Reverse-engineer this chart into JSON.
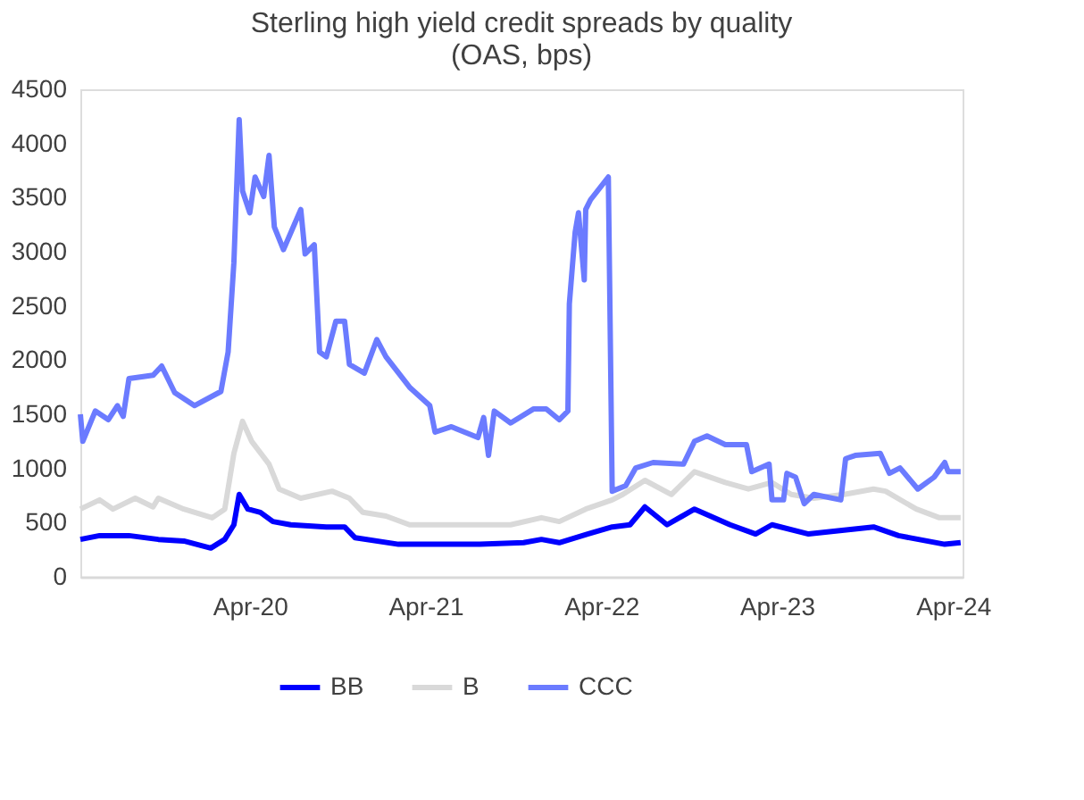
{
  "chart_data": {
    "type": "line",
    "title": "Sterling high yield credit spreads by quality (OAS, bps)",
    "xlim": [
      "2019-04-15",
      "2024-04-21"
    ],
    "xticks": [
      {
        "value": "2020-04-01",
        "label": "Apr-20"
      },
      {
        "value": "2021-04-01",
        "label": "Apr-21"
      },
      {
        "value": "2022-04-01",
        "label": "Apr-22"
      },
      {
        "value": "2023-04-01",
        "label": "Apr-23"
      },
      {
        "value": "2024-04-01",
        "label": "Apr-24"
      }
    ],
    "ylim": [
      0,
      4500
    ],
    "yticks": [
      0,
      500,
      1000,
      1500,
      2000,
      2500,
      3000,
      3500,
      4000,
      4500
    ],
    "grid": false,
    "legend": "bottom",
    "marker": "none",
    "line_style": "solid",
    "series": [
      {
        "name": "BB",
        "color": "#0000ff",
        "x": [
          "2019-04-15",
          "2019-05-25",
          "2019-07-25",
          "2019-09-24",
          "2019-11-16",
          "2020-01-11",
          "2020-02-09",
          "2020-02-28",
          "2020-03-10",
          "2020-03-28",
          "2020-04-23",
          "2020-05-19",
          "2020-06-25",
          "2020-09-07",
          "2020-10-15",
          "2020-11-06",
          "2021-02-04",
          "2021-07-23",
          "2021-10-22",
          "2021-11-28",
          "2022-01-04",
          "2022-03-04",
          "2022-04-24",
          "2022-05-31",
          "2022-07-01",
          "2022-08-16",
          "2022-10-12",
          "2022-12-25",
          "2023-02-16",
          "2023-03-22",
          "2023-06-06",
          "2023-08-19",
          "2023-10-19",
          "2023-12-10",
          "2024-03-15",
          "2024-04-17"
        ],
        "values": [
          345,
          380,
          380,
          345,
          330,
          265,
          345,
          480,
          760,
          625,
          595,
          510,
          480,
          460,
          460,
          360,
          300,
          300,
          315,
          345,
          315,
          395,
          460,
          480,
          645,
          480,
          625,
          480,
          395,
          480,
          395,
          430,
          460,
          380,
          300,
          315
        ]
      },
      {
        "name": "B",
        "color": "#d9d9d9",
        "x": [
          "2019-04-15",
          "2019-05-25",
          "2019-06-22",
          "2019-08-07",
          "2019-09-13",
          "2019-09-24",
          "2019-11-16",
          "2020-01-14",
          "2020-02-09",
          "2020-02-28",
          "2020-03-17",
          "2020-04-05",
          "2020-05-11",
          "2020-06-01",
          "2020-07-16",
          "2020-09-19",
          "2020-10-25",
          "2020-11-22",
          "2021-01-09",
          "2021-02-27",
          "2021-05-25",
          "2021-09-25",
          "2021-11-28",
          "2022-01-04",
          "2022-02-28",
          "2022-04-24",
          "2022-05-16",
          "2022-07-01",
          "2022-08-25",
          "2022-10-12",
          "2022-12-15",
          "2023-02-01",
          "2023-03-22",
          "2023-05-01",
          "2023-06-17",
          "2023-08-19",
          "2023-10-19",
          "2023-11-13",
          "2024-01-16",
          "2024-03-04",
          "2024-04-17"
        ],
        "values": [
          625,
          710,
          625,
          725,
          645,
          725,
          625,
          545,
          625,
          1140,
          1435,
          1250,
          1040,
          810,
          725,
          790,
          725,
          595,
          560,
          480,
          480,
          480,
          545,
          510,
          625,
          710,
          760,
          890,
          760,
          970,
          870,
          810,
          870,
          760,
          725,
          760,
          810,
          790,
          625,
          545,
          545
        ]
      },
      {
        "name": "CCC",
        "color": "#6b7bff",
        "x": [
          "2019-04-15",
          "2019-04-20",
          "2019-05-16",
          "2019-06-12",
          "2019-07-01",
          "2019-07-13",
          "2019-07-25",
          "2019-09-13",
          "2019-10-01",
          "2019-10-28",
          "2019-12-08",
          "2020-02-01",
          "2020-02-16",
          "2020-02-28",
          "2020-03-10",
          "2020-03-17",
          "2020-04-01",
          "2020-04-12",
          "2020-04-30",
          "2020-05-11",
          "2020-05-22",
          "2020-06-10",
          "2020-07-16",
          "2020-07-25",
          "2020-08-13",
          "2020-08-24",
          "2020-09-07",
          "2020-09-27",
          "2020-10-15",
          "2020-10-25",
          "2020-11-25",
          "2020-12-21",
          "2021-01-09",
          "2021-02-27",
          "2021-04-10",
          "2021-04-21",
          "2021-05-25",
          "2021-07-19",
          "2021-07-31",
          "2021-08-10",
          "2021-08-22",
          "2021-09-25",
          "2021-11-12",
          "2021-12-08",
          "2022-01-04",
          "2022-01-22",
          "2022-01-25",
          "2022-02-06",
          "2022-02-13",
          "2022-02-25",
          "2022-02-28",
          "2022-03-10",
          "2022-04-16",
          "2022-04-24",
          "2022-05-22",
          "2022-06-12",
          "2022-07-18",
          "2022-09-19",
          "2022-10-12",
          "2022-11-07",
          "2022-12-15",
          "2023-01-28",
          "2023-02-08",
          "2023-03-16",
          "2023-03-22",
          "2023-04-15",
          "2023-04-22",
          "2023-05-10",
          "2023-05-28",
          "2023-06-17",
          "2023-08-12",
          "2023-08-22",
          "2023-09-11",
          "2023-11-02",
          "2023-11-21",
          "2023-12-13",
          "2024-01-19",
          "2024-02-22",
          "2024-03-15",
          "2024-03-22",
          "2024-04-17"
        ],
        "values": [
          1500,
          1250,
          1530,
          1450,
          1580,
          1480,
          1830,
          1860,
          1945,
          1700,
          1580,
          1710,
          2075,
          2900,
          4220,
          3560,
          3360,
          3690,
          3510,
          3890,
          3230,
          3020,
          3390,
          2980,
          3065,
          2075,
          2030,
          2360,
          2360,
          1960,
          1880,
          2190,
          2030,
          1750,
          1580,
          1335,
          1385,
          1285,
          1470,
          1120,
          1530,
          1420,
          1550,
          1550,
          1450,
          1530,
          2520,
          3180,
          3360,
          2740,
          3390,
          3480,
          3690,
          790,
          840,
          1005,
          1055,
          1040,
          1250,
          1300,
          1220,
          1220,
          970,
          1040,
          710,
          710,
          955,
          920,
          675,
          760,
          710,
          1090,
          1120,
          1140,
          955,
          1005,
          810,
          920,
          1055,
          970,
          970
        ]
      }
    ]
  }
}
